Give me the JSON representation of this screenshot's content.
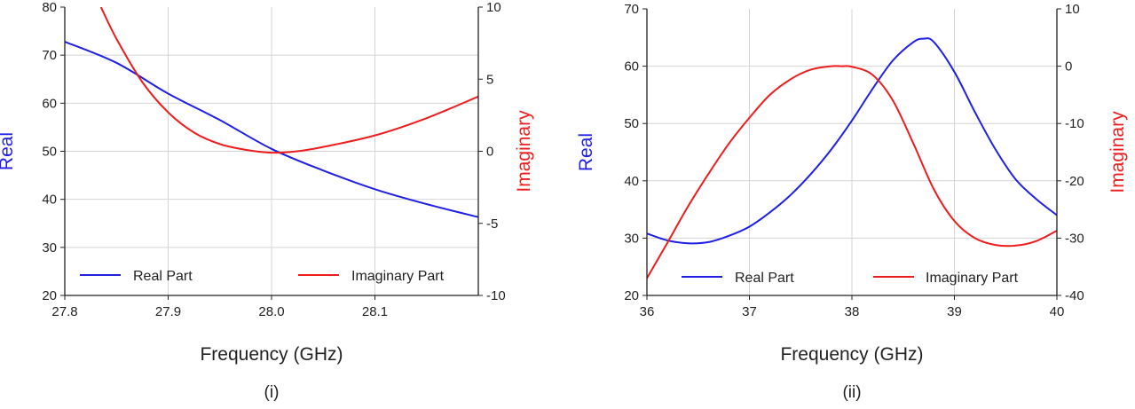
{
  "colors": {
    "real": "#1f1fe6",
    "imaginary": "#ee1c1c",
    "grid": "#d4d4d4",
    "axis": "#222222"
  },
  "chart_data": [
    {
      "type": "line",
      "caption": "(i)",
      "xlabel": "Frequency (GHz)",
      "ylabel": "Real",
      "y2label": "Imaginary",
      "xlim": [
        27.8,
        28.2
      ],
      "ylim": [
        20,
        80
      ],
      "y2lim": [
        -10,
        10
      ],
      "xticks": [
        "27.8",
        "27.9",
        "28.0",
        "28.1"
      ],
      "xtick_values": [
        27.8,
        27.9,
        28.0,
        28.1
      ],
      "yticks": [
        20,
        30,
        40,
        50,
        60,
        70,
        80
      ],
      "y2ticks": [
        -10,
        -5,
        0,
        5,
        10
      ],
      "grid": true,
      "legend": {
        "position": "bottom",
        "entries": [
          "Real Part",
          "Imaginary Part"
        ]
      },
      "series": [
        {
          "name": "Real Part",
          "axis": "left",
          "color": "#1f1fe6",
          "x": [
            27.8,
            27.85,
            27.9,
            27.95,
            28.0,
            28.05,
            28.1,
            28.15,
            28.2
          ],
          "y": [
            72.8,
            68.4,
            62.0,
            56.5,
            50.5,
            46.0,
            42.1,
            39.0,
            36.3
          ]
        },
        {
          "name": "Imaginary Part",
          "axis": "right",
          "color": "#ee1c1c",
          "x": [
            27.835,
            27.85,
            27.875,
            27.9,
            27.925,
            27.95,
            27.975,
            28.0,
            28.025,
            28.05,
            28.1,
            28.15,
            28.2
          ],
          "y": [
            10.0,
            7.8,
            4.8,
            2.7,
            1.3,
            0.5,
            0.1,
            -0.1,
            0.0,
            0.3,
            1.1,
            2.3,
            3.8
          ]
        }
      ]
    },
    {
      "type": "line",
      "caption": "(ii)",
      "xlabel": "Frequency (GHz)",
      "ylabel": "Real",
      "y2label": "Imaginary",
      "xlim": [
        36,
        40
      ],
      "ylim": [
        20,
        70
      ],
      "y2lim": [
        -40,
        10
      ],
      "xticks": [
        "36",
        "37",
        "38",
        "39",
        "40"
      ],
      "xtick_values": [
        36,
        37,
        38,
        39,
        40
      ],
      "yticks": [
        20,
        30,
        40,
        50,
        60,
        70
      ],
      "y2ticks": [
        -40,
        -30,
        -20,
        -10,
        0,
        10
      ],
      "grid": true,
      "legend": {
        "position": "bottom",
        "entries": [
          "Real Part",
          "Imaginary Part"
        ]
      },
      "series": [
        {
          "name": "Real Part",
          "axis": "left",
          "color": "#1f1fe6",
          "x": [
            36.0,
            36.2,
            36.4,
            36.6,
            36.8,
            37.0,
            37.2,
            37.4,
            37.6,
            37.8,
            38.0,
            38.2,
            38.4,
            38.6,
            38.7,
            38.8,
            39.0,
            39.2,
            39.4,
            39.6,
            39.8,
            40.0
          ],
          "y": [
            30.8,
            29.6,
            29.1,
            29.3,
            30.4,
            32.0,
            34.5,
            37.5,
            41.2,
            45.5,
            50.5,
            56.0,
            61.0,
            64.2,
            64.8,
            64.2,
            59.0,
            52.0,
            45.5,
            40.2,
            36.8,
            34.0
          ]
        },
        {
          "name": "Imaginary Part",
          "axis": "right",
          "color": "#ee1c1c",
          "x": [
            36.0,
            36.2,
            36.4,
            36.6,
            36.8,
            37.0,
            37.2,
            37.4,
            37.6,
            37.8,
            37.9,
            38.0,
            38.2,
            38.4,
            38.6,
            38.8,
            39.0,
            39.2,
            39.4,
            39.6,
            39.8,
            40.0
          ],
          "y": [
            -37.0,
            -30.8,
            -24.5,
            -18.8,
            -13.5,
            -9.0,
            -5.0,
            -2.3,
            -0.6,
            0.0,
            0.0,
            -0.1,
            -1.5,
            -6.0,
            -13.5,
            -21.5,
            -27.0,
            -30.0,
            -31.2,
            -31.3,
            -30.5,
            -28.7
          ]
        }
      ]
    }
  ]
}
